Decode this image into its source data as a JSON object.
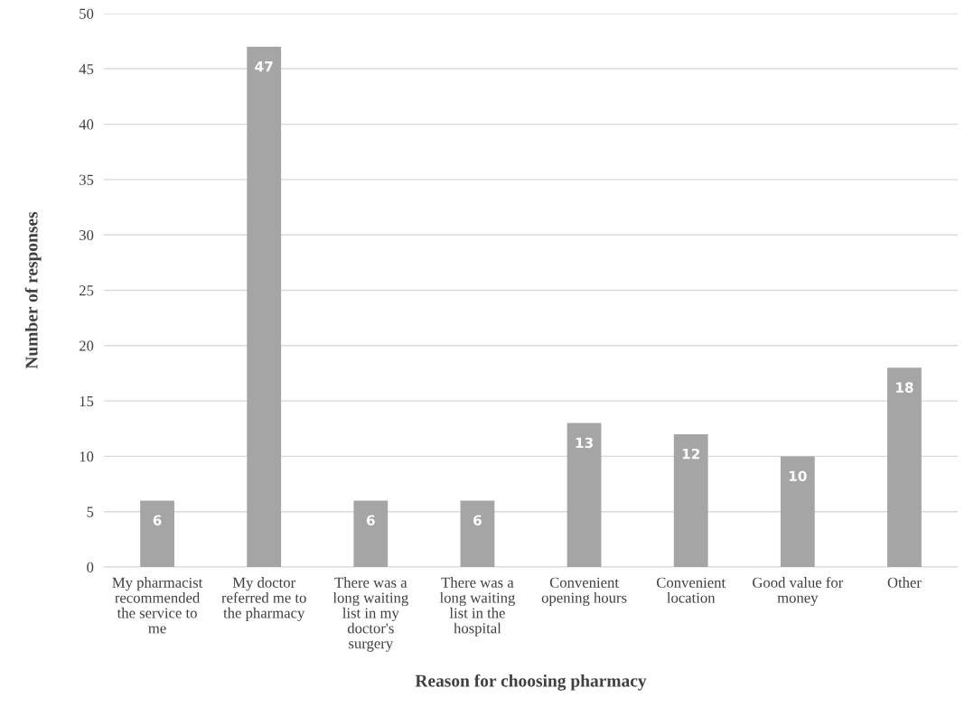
{
  "chart_data": {
    "type": "bar",
    "xlabel": "Reason for choosing pharmacy",
    "ylabel": "Number of responses",
    "categories": [
      "My pharmacist\nrecommended\nthe service to\nme",
      "My doctor\nreferred me to\nthe pharmacy",
      "There was a\nlong waiting\nlist in my\ndoctor's\nsurgery",
      "There was a\nlong waiting\nlist in the\nhospital",
      "Convenient\nopening hours",
      "Convenient\nlocation",
      "Good value for\nmoney",
      "Other"
    ],
    "values": [
      6,
      47,
      6,
      6,
      13,
      12,
      10,
      18
    ],
    "color": "#a5a5a5",
    "ylim": [
      0,
      50
    ],
    "yticks": [
      0,
      5,
      10,
      15,
      20,
      25,
      30,
      35,
      40,
      45,
      50
    ],
    "grid": "y",
    "data_labels": true,
    "legend": false
  }
}
